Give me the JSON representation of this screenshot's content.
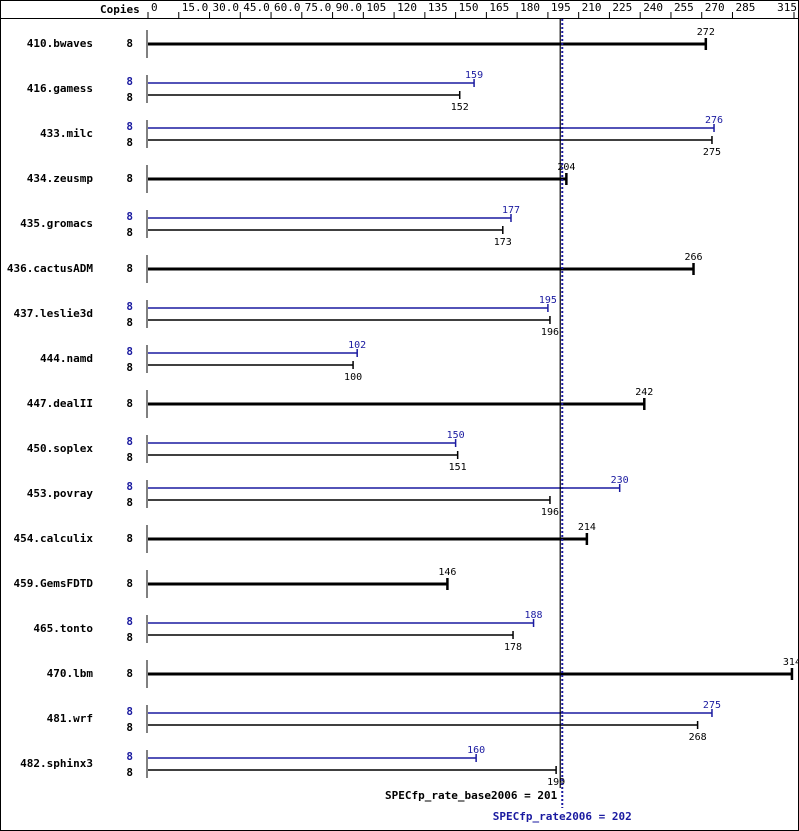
{
  "chart_data": {
    "type": "bar",
    "orientation": "horizontal",
    "header": "Copies",
    "categories": [
      "410.bwaves",
      "416.gamess",
      "433.milc",
      "434.zeusmp",
      "435.gromacs",
      "436.cactusADM",
      "437.leslie3d",
      "444.namd",
      "447.dealII",
      "450.soplex",
      "453.povray",
      "454.calculix",
      "459.GemsFDTD",
      "465.tonto",
      "470.lbm",
      "481.wrf",
      "482.sphinx3"
    ],
    "series": [
      {
        "color": "#1a1aa0",
        "copies": [
          null,
          8,
          8,
          null,
          8,
          null,
          8,
          8,
          null,
          8,
          8,
          null,
          null,
          8,
          null,
          8,
          8
        ],
        "values": [
          null,
          159,
          276,
          null,
          177,
          null,
          195,
          102,
          null,
          150,
          230,
          null,
          null,
          188,
          null,
          275,
          160
        ]
      },
      {
        "color": "#000000",
        "copies": [
          8,
          8,
          8,
          8,
          8,
          8,
          8,
          8,
          8,
          8,
          8,
          8,
          8,
          8,
          8,
          8,
          8
        ],
        "values": [
          272,
          152,
          275,
          204,
          173,
          266,
          196,
          100,
          242,
          151,
          196,
          214,
          146,
          178,
          314,
          268,
          199
        ]
      }
    ],
    "xlim": [
      0,
      315
    ],
    "xticks": [
      0,
      {
        "value": 15,
        "label": "15.0"
      },
      {
        "value": 30,
        "label": "30.0"
      },
      {
        "value": 45,
        "label": "45.0"
      },
      {
        "value": 60,
        "label": "60.0"
      },
      {
        "value": 75,
        "label": "75.0"
      },
      {
        "value": 90,
        "label": "90.0"
      },
      105,
      120,
      135,
      150,
      165,
      180,
      195,
      210,
      225,
      240,
      255,
      270,
      285,
      315
    ],
    "reference_lines": [
      {
        "label": "SPECfp_rate_base2006 = 201",
        "value": 201,
        "color": "#000000",
        "style": "solid"
      },
      {
        "label": "SPECfp_rate2006 = 202",
        "value": 202,
        "color": "#1a1aa0",
        "style": "dotted"
      }
    ]
  }
}
